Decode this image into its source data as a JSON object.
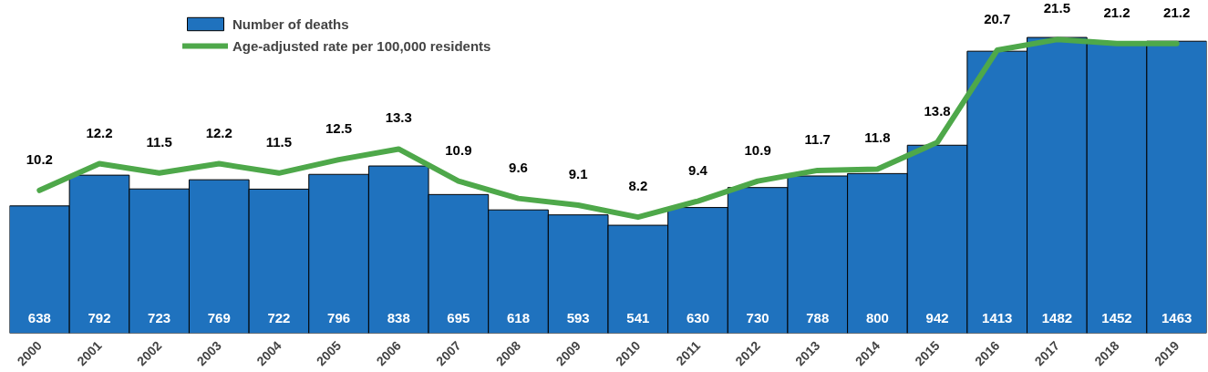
{
  "chart_data": {
    "type": "bar",
    "categories": [
      "2000",
      "2001",
      "2002",
      "2003",
      "2004",
      "2005",
      "2006",
      "2007",
      "2008",
      "2009",
      "2010",
      "2011",
      "2012",
      "2013",
      "2014",
      "2015",
      "2016",
      "2017",
      "2018",
      "2019"
    ],
    "series": [
      {
        "name": "Number of deaths",
        "color": "#1f72be",
        "values": [
          638,
          792,
          723,
          769,
          722,
          796,
          838,
          695,
          618,
          593,
          541,
          630,
          730,
          788,
          800,
          942,
          1413,
          1482,
          1452,
          1463
        ]
      },
      {
        "name": "Age-adjusted rate per 100,000 residents",
        "type": "line",
        "axis": "y2",
        "color": "#4ea84a",
        "values": [
          10.2,
          12.2,
          11.5,
          12.2,
          11.5,
          12.5,
          13.3,
          10.9,
          9.6,
          9.1,
          8.2,
          9.4,
          10.9,
          11.7,
          11.8,
          13.8,
          20.7,
          21.5,
          21.2,
          21.2
        ]
      }
    ],
    "data_labels": true,
    "legend": "top left",
    "grid": false,
    "tick_labels": "x",
    "marker": "none",
    "line_style": "solid"
  }
}
